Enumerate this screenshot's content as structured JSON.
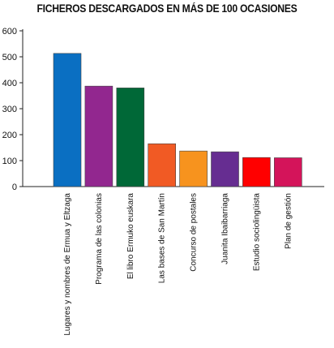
{
  "chart_data": {
    "type": "bar",
    "title": "FICHEROS DESCARGADOS EN MÁS DE 100 OCASIONES",
    "xlabel": "",
    "ylabel": "",
    "ylim": [
      0,
      600
    ],
    "yticks": [
      0,
      100,
      200,
      300,
      400,
      500,
      600
    ],
    "grid": false,
    "categories": [
      "Lugares y nombres de Ermua y Eltzaga",
      "Programa de las colonias",
      "El libro Ermuko euskara",
      "Las bases de San Martín",
      "Concurso de postales",
      "Juanita Ibaibarriaga",
      "Estudio sociolingüista",
      "Plan de gestión"
    ],
    "values": [
      513,
      387,
      380,
      165,
      137,
      134,
      112,
      111
    ],
    "colors": [
      "#0a6fc2",
      "#92278f",
      "#006837",
      "#f15a24",
      "#f7931e",
      "#662d91",
      "#ff0000",
      "#d4145a"
    ]
  }
}
